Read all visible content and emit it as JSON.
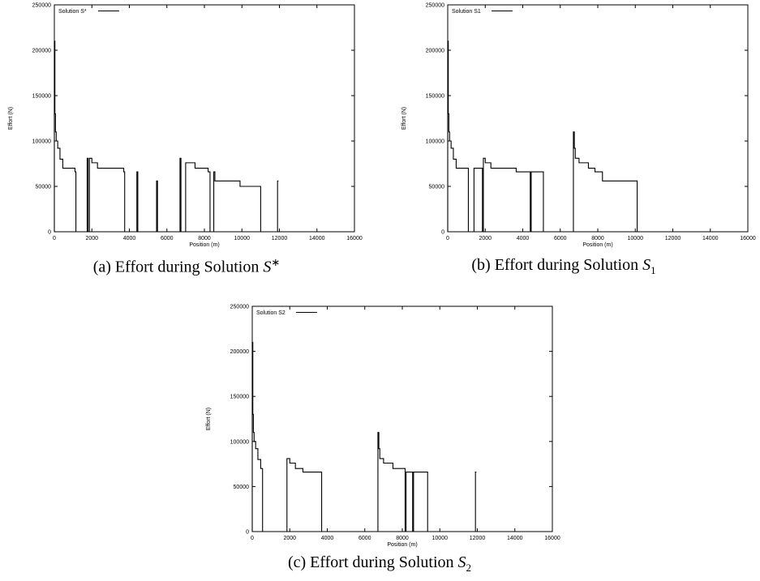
{
  "chart_data": [
    {
      "id": "a",
      "type": "line",
      "xlabel": "Position (m)",
      "ylabel": "Effort (N)",
      "xlim": [
        0,
        16000
      ],
      "ylim": [
        0,
        250000
      ],
      "xticks": [
        "0",
        "2000",
        "4000",
        "6000",
        "8000",
        "10000",
        "12000",
        "14000",
        "16000"
      ],
      "yticks": [
        "0",
        "50000",
        "100000",
        "150000",
        "200000",
        "250000"
      ],
      "legend": "top-left",
      "series": [
        {
          "name": "Solution S*",
          "x": [
            0,
            0,
            30,
            30,
            60,
            60,
            100,
            100,
            180,
            180,
            300,
            300,
            450,
            450,
            700,
            700,
            1100,
            1100,
            1150,
            1150,
            1750,
            1750,
            1800,
            1800,
            1870,
            1870,
            2000,
            2000,
            2300,
            2300,
            3700,
            3700,
            3750,
            3750,
            4400,
            4400,
            4450,
            4450,
            5450,
            5450,
            5500,
            5500,
            6700,
            6700,
            6750,
            6750,
            7000,
            7000,
            7500,
            7500,
            8200,
            8200,
            8300,
            8300,
            8500,
            8500,
            8560,
            8560,
            9900,
            9900,
            11000,
            11000,
            11100,
            11100,
            11900,
            11900,
            11950
          ],
          "y": [
            0,
            210000,
            210000,
            130000,
            130000,
            110000,
            110000,
            100000,
            100000,
            92000,
            92000,
            80000,
            80000,
            70000,
            70000,
            70000,
            70000,
            66000,
            66000,
            0,
            0,
            81000,
            81000,
            0,
            0,
            81000,
            81000,
            76000,
            76000,
            70000,
            70000,
            66000,
            66000,
            0,
            0,
            66000,
            66000,
            0,
            0,
            56000,
            56000,
            0,
            0,
            81000,
            81000,
            0,
            0,
            76000,
            76000,
            70000,
            70000,
            66000,
            66000,
            0,
            0,
            66000,
            66000,
            56000,
            56000,
            50000,
            50000,
            0,
            0,
            0,
            0,
            56000,
            56000
          ]
        }
      ]
    },
    {
      "id": "b",
      "type": "line",
      "xlabel": "Position (m)",
      "ylabel": "Effort (N)",
      "xlim": [
        0,
        16000
      ],
      "ylim": [
        0,
        250000
      ],
      "xticks": [
        "0",
        "2000",
        "4000",
        "6000",
        "8000",
        "10000",
        "12000",
        "14000",
        "16000"
      ],
      "yticks": [
        "0",
        "50000",
        "100000",
        "150000",
        "200000",
        "250000"
      ],
      "legend": "top-left",
      "series": [
        {
          "name": "Solution S1",
          "x": [
            0,
            0,
            30,
            30,
            60,
            60,
            100,
            100,
            180,
            180,
            300,
            300,
            450,
            450,
            1100,
            1100,
            1400,
            1400,
            1850,
            1850,
            1900,
            1900,
            2000,
            2000,
            2300,
            2300,
            3650,
            3650,
            4400,
            4400,
            4450,
            4450,
            5100,
            5100,
            6700,
            6700,
            6750,
            6750,
            6800,
            6800,
            7000,
            7000,
            7500,
            7500,
            7850,
            7850,
            8250,
            8250,
            8700,
            8700,
            10100,
            10100,
            12300
          ],
          "y": [
            0,
            210000,
            210000,
            130000,
            130000,
            110000,
            110000,
            100000,
            100000,
            92000,
            92000,
            80000,
            80000,
            70000,
            70000,
            0,
            0,
            70000,
            70000,
            0,
            0,
            81000,
            81000,
            76000,
            76000,
            70000,
            70000,
            66000,
            66000,
            0,
            0,
            66000,
            66000,
            0,
            0,
            110000,
            110000,
            92000,
            92000,
            81000,
            81000,
            76000,
            76000,
            70000,
            70000,
            66000,
            66000,
            56000,
            56000,
            56000,
            56000,
            0,
            0
          ]
        }
      ]
    },
    {
      "id": "c",
      "type": "line",
      "xlabel": "Position (m)",
      "ylabel": "Effort (N)",
      "xlim": [
        0,
        16000
      ],
      "ylim": [
        0,
        250000
      ],
      "xticks": [
        "0",
        "2000",
        "4000",
        "6000",
        "8000",
        "10000",
        "12000",
        "14000",
        "16000"
      ],
      "yticks": [
        "0",
        "50000",
        "100000",
        "150000",
        "200000",
        "250000"
      ],
      "legend": "top-left",
      "series": [
        {
          "name": "Solution S2",
          "x": [
            0,
            0,
            30,
            30,
            60,
            60,
            100,
            100,
            180,
            180,
            300,
            300,
            450,
            450,
            550,
            550,
            1850,
            1850,
            1900,
            1900,
            2000,
            2000,
            2300,
            2300,
            2700,
            2700,
            3700,
            3700,
            6700,
            6700,
            6750,
            6750,
            6800,
            6800,
            7000,
            7000,
            7500,
            7500,
            8150,
            8150,
            8200,
            8200,
            8550,
            8550,
            8600,
            8600,
            9350,
            9350,
            11900,
            11900,
            11950
          ],
          "y": [
            0,
            210000,
            210000,
            130000,
            130000,
            110000,
            110000,
            100000,
            100000,
            92000,
            92000,
            80000,
            80000,
            70000,
            70000,
            0,
            0,
            81000,
            81000,
            81000,
            81000,
            76000,
            76000,
            70000,
            70000,
            66000,
            66000,
            0,
            0,
            110000,
            110000,
            92000,
            92000,
            81000,
            81000,
            76000,
            76000,
            70000,
            70000,
            0,
            0,
            66000,
            66000,
            0,
            0,
            66000,
            66000,
            0,
            0,
            66000,
            66000
          ]
        }
      ]
    }
  ],
  "captions": {
    "a": {
      "prefix": "(a) Effort during Solution ",
      "symbol": "S",
      "sup": "∗",
      "sub": ""
    },
    "b": {
      "prefix": "(b) Effort during Solution ",
      "symbol": "S",
      "sup": "",
      "sub": "1"
    },
    "c": {
      "prefix": "(c) Effort during Solution ",
      "symbol": "S",
      "sup": "",
      "sub": "2"
    }
  }
}
